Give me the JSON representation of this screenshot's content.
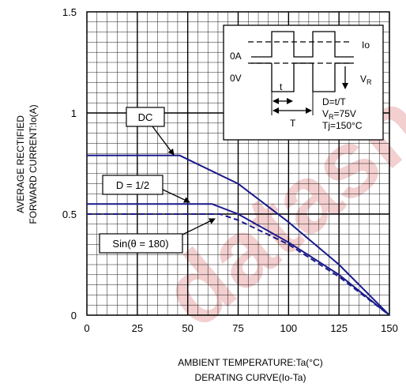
{
  "chart_data": {
    "type": "line",
    "xlabel": "AMBIENT TEMPERATURE:Ta(°C)",
    "caption": "DERATING CURVE(Io-Ta)",
    "ylabel_line1": "AVERAGE RECTIFIED",
    "ylabel_line2": "FORWARD CURRENT:Io(A)",
    "xlim": [
      0,
      150
    ],
    "ylim": [
      0,
      1.5
    ],
    "x_ticks": [
      0,
      25,
      50,
      75,
      100,
      125,
      150
    ],
    "x_tick_labels": [
      "0",
      "25",
      "50",
      "75",
      "100",
      "125",
      "150"
    ],
    "y_ticks": [
      0,
      0.5,
      1,
      1.5
    ],
    "y_tick_labels": [
      "0",
      "0.5",
      "1",
      "1.5"
    ],
    "grid": true,
    "series": [
      {
        "name": "DC",
        "style": "solid",
        "x": [
          0,
          46,
          75,
          100,
          125,
          150
        ],
        "y": [
          0.79,
          0.79,
          0.65,
          0.46,
          0.25,
          0.0
        ]
      },
      {
        "name": "D = 1/2",
        "style": "solid",
        "x": [
          0,
          62,
          75,
          100,
          125,
          150
        ],
        "y": [
          0.55,
          0.55,
          0.5,
          0.36,
          0.2,
          0.0
        ]
      },
      {
        "name": "Sin(θ = 180)",
        "style": "dashed",
        "x": [
          0,
          66,
          75,
          100,
          125,
          150
        ],
        "y": [
          0.5,
          0.5,
          0.47,
          0.35,
          0.19,
          0.0
        ]
      }
    ],
    "inset": {
      "label_io": "Io",
      "label_0a": "0A",
      "label_0v": "0V",
      "label_vr": "V",
      "label_vr_sub": "R",
      "label_t_small": "t",
      "label_t_big": "T",
      "line_d": "D=t/T",
      "line_vr_pre": "V",
      "line_vr_sub": "R",
      "line_vr_post": "=75V",
      "line_tj": "Tj=150°C"
    },
    "colors": {
      "curve": "#1a1a8c",
      "grid": "#000000",
      "watermark": "#f3cfcf"
    }
  },
  "watermark": {
    "text": "datashe"
  }
}
